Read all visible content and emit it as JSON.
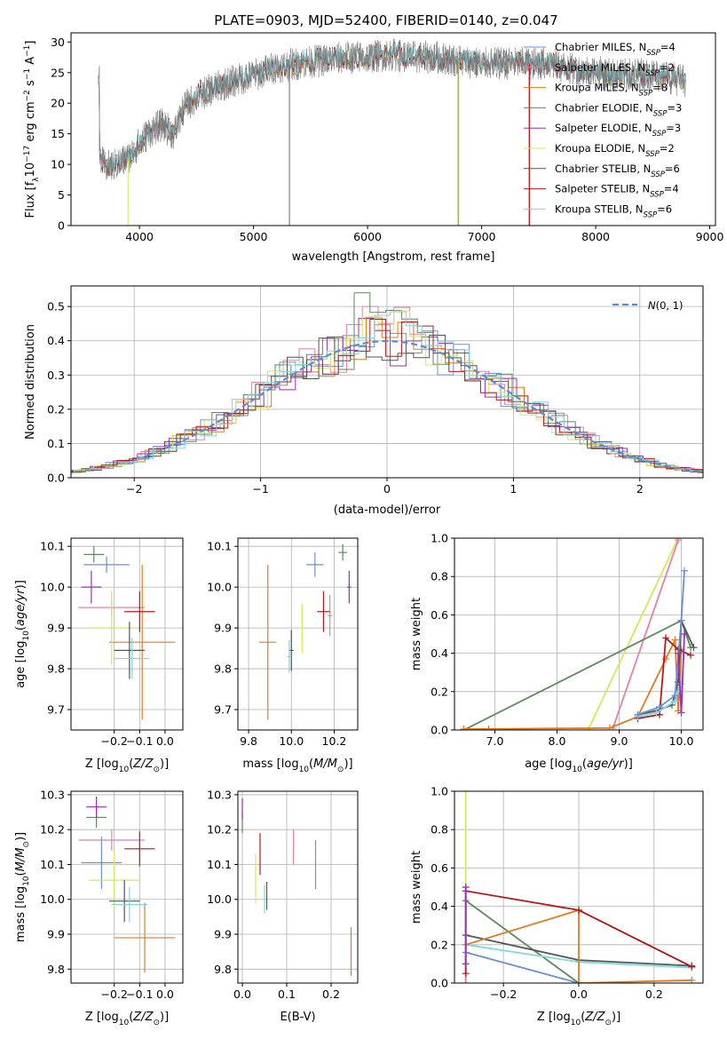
{
  "title": "PLATE=0903, MJD=52400, FIBERID=0140, z=0.047",
  "colors": {
    "Chabrier MILES": "#6a8fd6",
    "Salpeter MILES": "#e87fa8",
    "Kroupa MILES": "#e07b20",
    "Chabrier ELODIE": "#5a8a5e",
    "Salpeter ELODIE": "#9a2fb8",
    "Kroupa ELODIE": "#d4e85a",
    "Chabrier STELIB": "#555555",
    "Salpeter STELIB": "#b01b1b",
    "Kroupa STELIB": "#7fd8e0",
    "normal": "#5b8ad8"
  },
  "chart_data": [
    {
      "id": "spectrum",
      "type": "line",
      "xlabel": "wavelength [Angstrom, rest frame]",
      "ylabel": "Flux [f_λ 10^-17 erg cm^-2 s^-1 A^-1]",
      "xlim": [
        3400,
        9050
      ],
      "ylim": [
        0,
        31.5
      ],
      "xticks": [
        4000,
        5000,
        6000,
        7000,
        8000,
        9000
      ],
      "yticks": [
        0,
        5,
        10,
        15,
        20,
        25,
        30
      ],
      "legend_position": "top-right",
      "legend": [
        {
          "label": "Chabrier MILES, N",
          "sub": "SSP",
          "suffix": "=4"
        },
        {
          "label": "Salpeter MILES, N",
          "sub": "SSP",
          "suffix": "=2"
        },
        {
          "label": "Kroupa MILES, N",
          "sub": "SSP",
          "suffix": "=8"
        },
        {
          "label": "Chabrier ELODIE, N",
          "sub": "SSP",
          "suffix": "=3"
        },
        {
          "label": "Salpeter ELODIE, N",
          "sub": "SSP",
          "suffix": "=3"
        },
        {
          "label": "Kroupa ELODIE, N",
          "sub": "SSP",
          "suffix": "=2"
        },
        {
          "label": "Chabrier STELIB, N",
          "sub": "SSP",
          "suffix": "=6"
        },
        {
          "label": "Salpeter STELIB, N",
          "sub": "SSP",
          "suffix": "=4"
        },
        {
          "label": "Kroupa STELIB, N",
          "sub": "SSP",
          "suffix": "=6"
        }
      ],
      "continuum": {
        "x": [
          3650,
          3700,
          3800,
          3900,
          4000,
          4100,
          4200,
          4300,
          4400,
          4500,
          4600,
          4800,
          5000,
          5200,
          5400,
          5600,
          5800,
          6000,
          6200,
          6400,
          6600,
          6800,
          7000,
          7200,
          7400,
          7600,
          7800,
          8000,
          8200,
          8400,
          8600,
          8800
        ],
        "y": [
          11,
          9.5,
          10,
          11,
          13.5,
          15.5,
          16.5,
          15,
          19.5,
          21,
          22,
          23.5,
          24.5,
          26,
          26.5,
          27,
          27.5,
          27.5,
          28,
          27.5,
          27.5,
          27,
          26.5,
          26.5,
          26.5,
          26.5,
          25.5,
          25.2,
          24.5,
          24.8,
          24.5,
          23.5
        ]
      }
    },
    {
      "id": "residuals",
      "type": "histogram",
      "xlabel": "(data-model)/error",
      "ylabel": "Normed distribution",
      "xlim": [
        -2.5,
        2.5
      ],
      "ylim": [
        0,
        0.56
      ],
      "xticks": [
        -2,
        -1,
        0,
        1,
        2
      ],
      "yticks": [
        0,
        0.1,
        0.2,
        0.3,
        0.4,
        0.5
      ],
      "legend_position": "top-right",
      "legend_label": "N(0,1)",
      "peak_values": {
        "Chabrier ELODIE": 0.54,
        "Salpeter MILES": 0.5,
        "Kroupa ELODIE": 0.47
      }
    },
    {
      "id": "age-vs-Z",
      "type": "errorbar",
      "xlabel": "Z [log10(Z/Z⊙)]",
      "ylabel": "age [log10(age/yr)]",
      "xlim": [
        -0.37,
        0.07
      ],
      "ylim": [
        9.65,
        10.12
      ],
      "xticks": [
        -0.2,
        -0.1,
        0.0
      ],
      "yticks": [
        9.7,
        9.8,
        9.9,
        10.0,
        10.1
      ],
      "points": [
        {
          "s": "Chabrier MILES",
          "x": -0.23,
          "y": 10.055,
          "xerr": 0.09,
          "yerr": 0.02
        },
        {
          "s": "Salpeter MILES",
          "x": -0.21,
          "y": 9.95,
          "xerr": 0.13,
          "yerr": 0.02
        },
        {
          "s": "Kroupa MILES",
          "x": -0.09,
          "y": 9.865,
          "xerr": 0.13,
          "yerr": 0.19
        },
        {
          "s": "Chabrier ELODIE",
          "x": -0.28,
          "y": 10.08,
          "xerr": 0.04,
          "yerr": 0.02
        },
        {
          "s": "Salpeter ELODIE",
          "x": -0.29,
          "y": 10.0,
          "xerr": 0.04,
          "yerr": 0.04
        },
        {
          "s": "Kroupa ELODIE",
          "x": -0.21,
          "y": 9.9,
          "xerr": 0.09,
          "yerr": 0.09
        },
        {
          "s": "Chabrier STELIB",
          "x": -0.14,
          "y": 9.845,
          "xerr": 0.06,
          "yerr": 0.07
        },
        {
          "s": "Salpeter STELIB",
          "x": -0.1,
          "y": 9.94,
          "xerr": 0.06,
          "yerr": 0.05
        },
        {
          "s": "Kroupa STELIB",
          "x": -0.13,
          "y": 9.825,
          "xerr": 0.07,
          "yerr": 0.05
        }
      ]
    },
    {
      "id": "age-vs-mass",
      "type": "errorbar",
      "xlabel": "mass [log10(M/M⊙)]",
      "ylabel": "",
      "xlim": [
        9.75,
        10.31
      ],
      "ylim": [
        9.65,
        10.12
      ],
      "xticks": [
        9.8,
        10.0,
        10.2
      ],
      "yticks": [
        9.7,
        9.8,
        9.9,
        10.0,
        10.1
      ],
      "points": [
        {
          "s": "Chabrier MILES",
          "x": 10.11,
          "y": 10.055,
          "xerr": 0.04,
          "yerr": 0.03
        },
        {
          "s": "Salpeter MILES",
          "x": 10.18,
          "y": 9.93,
          "xerr": 0.01,
          "yerr": 0.05
        },
        {
          "s": "Kroupa MILES",
          "x": 9.89,
          "y": 9.865,
          "xerr": 0.04,
          "yerr": 0.19
        },
        {
          "s": "Chabrier ELODIE",
          "x": 10.24,
          "y": 10.085,
          "xerr": 0.02,
          "yerr": 0.02
        },
        {
          "s": "Salpeter ELODIE",
          "x": 10.27,
          "y": 10.0,
          "xerr": 0.01,
          "yerr": 0.04
        },
        {
          "s": "Kroupa ELODIE",
          "x": 10.05,
          "y": 9.9,
          "xerr": 0.01,
          "yerr": 0.06
        },
        {
          "s": "Chabrier STELIB",
          "x": 10.0,
          "y": 9.845,
          "xerr": 0.01,
          "yerr": 0.05
        },
        {
          "s": "Salpeter STELIB",
          "x": 10.15,
          "y": 9.94,
          "xerr": 0.03,
          "yerr": 0.05
        },
        {
          "s": "Kroupa STELIB",
          "x": 9.99,
          "y": 9.83,
          "xerr": 0.01,
          "yerr": 0.04
        }
      ]
    },
    {
      "id": "massweight-vs-age",
      "type": "line",
      "xlabel": "age [log10(age/yr)]",
      "ylabel": "mass weight",
      "xlim": [
        6.35,
        10.35
      ],
      "ylim": [
        0,
        1.0
      ],
      "xticks": [
        7,
        8,
        9,
        10
      ],
      "yticks": [
        0.0,
        0.2,
        0.4,
        0.6,
        0.8,
        1.0
      ],
      "series": [
        {
          "s": "Kroupa ELODIE",
          "x": [
            8.5,
            9.95
          ],
          "y": [
            0.0,
            1.0
          ]
        },
        {
          "s": "Salpeter MILES",
          "x": [
            8.9,
            9.95
          ],
          "y": [
            0.01,
            0.99
          ]
        },
        {
          "s": "Chabrier ELODIE",
          "x": [
            6.5,
            10.0,
            10.15
          ],
          "y": [
            0.0,
            0.57,
            0.43
          ]
        },
        {
          "s": "Kroupa MILES",
          "x": [
            6.5,
            6.9,
            8.85,
            9.3,
            9.75,
            9.9,
            9.95,
            10.0
          ],
          "y": [
            0.005,
            0.005,
            0.01,
            0.07,
            0.37,
            0.47,
            0.1,
            0.42
          ]
        },
        {
          "s": "Salpeter STELIB",
          "x": [
            9.3,
            9.65,
            9.75,
            9.95,
            10.15
          ],
          "y": [
            0.06,
            0.08,
            0.48,
            0.42,
            0.39
          ]
        },
        {
          "s": "Chabrier STELIB",
          "x": [
            9.3,
            9.6,
            9.85,
            9.95,
            10.0,
            10.2
          ],
          "y": [
            0.08,
            0.1,
            0.13,
            0.25,
            0.57,
            0.43
          ]
        },
        {
          "s": "Kroupa STELIB",
          "x": [
            9.3,
            9.6,
            9.9,
            9.95,
            10.0
          ],
          "y": [
            0.07,
            0.09,
            0.15,
            0.2,
            0.24
          ]
        },
        {
          "s": "Chabrier MILES",
          "x": [
            9.3,
            9.65,
            9.9,
            10.0,
            10.05
          ],
          "y": [
            0.08,
            0.12,
            0.18,
            0.57,
            0.83
          ]
        },
        {
          "s": "Salpeter ELODIE",
          "x": [
            9.95,
            10.0,
            10.05
          ],
          "y": [
            0.4,
            0.09,
            0.5
          ]
        }
      ]
    },
    {
      "id": "mass-vs-Z",
      "type": "errorbar",
      "xlabel": "Z [log10(Z/Z⊙)]",
      "ylabel": "mass [log10(M/M⊙)]",
      "xlim": [
        -0.37,
        0.07
      ],
      "ylim": [
        9.76,
        10.31
      ],
      "xticks": [
        -0.2,
        -0.1,
        0.0
      ],
      "yticks": [
        9.8,
        9.9,
        10.0,
        10.1,
        10.2,
        10.3
      ],
      "points": [
        {
          "s": "Chabrier MILES",
          "x": -0.25,
          "y": 10.105,
          "xerr": 0.08,
          "yerr": 0.075
        },
        {
          "s": "Salpeter MILES",
          "x": -0.21,
          "y": 10.17,
          "xerr": 0.13,
          "yerr": 0.03
        },
        {
          "s": "Kroupa MILES",
          "x": -0.08,
          "y": 9.89,
          "xerr": 0.12,
          "yerr": 0.1
        },
        {
          "s": "Chabrier ELODIE",
          "x": -0.27,
          "y": 10.235,
          "xerr": 0.04,
          "yerr": 0.03
        },
        {
          "s": "Salpeter ELODIE",
          "x": -0.27,
          "y": 10.265,
          "xerr": 0.04,
          "yerr": 0.03
        },
        {
          "s": "Kroupa ELODIE",
          "x": -0.2,
          "y": 10.055,
          "xerr": 0.1,
          "yerr": 0.08
        },
        {
          "s": "Chabrier STELIB",
          "x": -0.16,
          "y": 9.995,
          "xerr": 0.06,
          "yerr": 0.06
        },
        {
          "s": "Salpeter STELIB",
          "x": -0.1,
          "y": 10.145,
          "xerr": 0.06,
          "yerr": 0.05
        },
        {
          "s": "Kroupa STELIB",
          "x": -0.14,
          "y": 9.985,
          "xerr": 0.07,
          "yerr": 0.05
        }
      ]
    },
    {
      "id": "mass-vs-EBV",
      "type": "errorbar",
      "xlabel": "E(B-V)",
      "ylabel": "",
      "xlim": [
        -0.01,
        0.26
      ],
      "ylim": [
        9.76,
        10.31
      ],
      "xticks": [
        0.0,
        0.1,
        0.2
      ],
      "yticks": [
        9.8,
        9.9,
        10.0,
        10.1,
        10.2,
        10.3
      ],
      "points": [
        {
          "s": "Chabrier MILES",
          "x": 0.165,
          "y": 10.1,
          "xerr": 0,
          "yerr": 0.07
        },
        {
          "s": "Salpeter MILES",
          "x": 0.115,
          "y": 10.15,
          "xerr": 0,
          "yerr": 0.05
        },
        {
          "s": "Kroupa MILES",
          "x": 0.245,
          "y": 9.85,
          "xerr": 0,
          "yerr": 0.07
        },
        {
          "s": "Chabrier ELODIE",
          "x": 0.0,
          "y": 10.22,
          "xerr": 0,
          "yerr": 0.03
        },
        {
          "s": "Salpeter ELODIE",
          "x": 0.0,
          "y": 10.26,
          "xerr": 0,
          "yerr": 0.03
        },
        {
          "s": "Kroupa ELODIE",
          "x": 0.03,
          "y": 10.06,
          "xerr": 0,
          "yerr": 0.07
        },
        {
          "s": "Chabrier STELIB",
          "x": 0.055,
          "y": 10.01,
          "xerr": 0,
          "yerr": 0.04
        },
        {
          "s": "Salpeter STELIB",
          "x": 0.04,
          "y": 10.13,
          "xerr": 0,
          "yerr": 0.06
        },
        {
          "s": "Kroupa STELIB",
          "x": 0.05,
          "y": 10.0,
          "xerr": 0,
          "yerr": 0.04
        }
      ]
    },
    {
      "id": "massweight-vs-Z",
      "type": "line",
      "xlabel": "Z [log10(Z/Z⊙)]",
      "ylabel": "mass weight",
      "xlim": [
        -0.33,
        0.33
      ],
      "ylim": [
        0,
        1.0
      ],
      "xticks": [
        -0.2,
        0.0,
        0.2
      ],
      "yticks": [
        0.0,
        0.2,
        0.4,
        0.6,
        0.8,
        1.0
      ],
      "series": [
        {
          "s": "Kroupa ELODIE",
          "x": [
            -0.3,
            -0.3
          ],
          "y": [
            0.0,
            1.0
          ]
        },
        {
          "s": "Salpeter MILES",
          "x": [
            -0.3,
            -0.3
          ],
          "y": [
            0.0,
            0.5
          ]
        },
        {
          "s": "Chabrier ELODIE",
          "x": [
            -0.3,
            0.0
          ],
          "y": [
            0.43,
            0.0
          ]
        },
        {
          "s": "Chabrier MILES",
          "x": [
            -0.3,
            0.0
          ],
          "y": [
            0.16,
            0.0
          ]
        },
        {
          "s": "Chabrier STELIB",
          "x": [
            -0.3,
            0.0,
            0.3
          ],
          "y": [
            0.25,
            0.12,
            0.09
          ]
        },
        {
          "s": "Kroupa STELIB",
          "x": [
            -0.3,
            0.0,
            0.3
          ],
          "y": [
            0.2,
            0.11,
            0.08
          ]
        },
        {
          "s": "Kroupa MILES",
          "x": [
            -0.3,
            0.0,
            0.0,
            0.3
          ],
          "y": [
            0.2,
            0.38,
            0.0,
            0.015
          ]
        },
        {
          "s": "Salpeter STELIB",
          "x": [
            -0.3,
            -0.3,
            0.0,
            0.3
          ],
          "y": [
            0.05,
            0.48,
            0.38,
            0.085
          ]
        },
        {
          "s": "Salpeter ELODIE",
          "x": [
            -0.3,
            -0.3
          ],
          "y": [
            0.1,
            0.5
          ]
        }
      ]
    }
  ]
}
